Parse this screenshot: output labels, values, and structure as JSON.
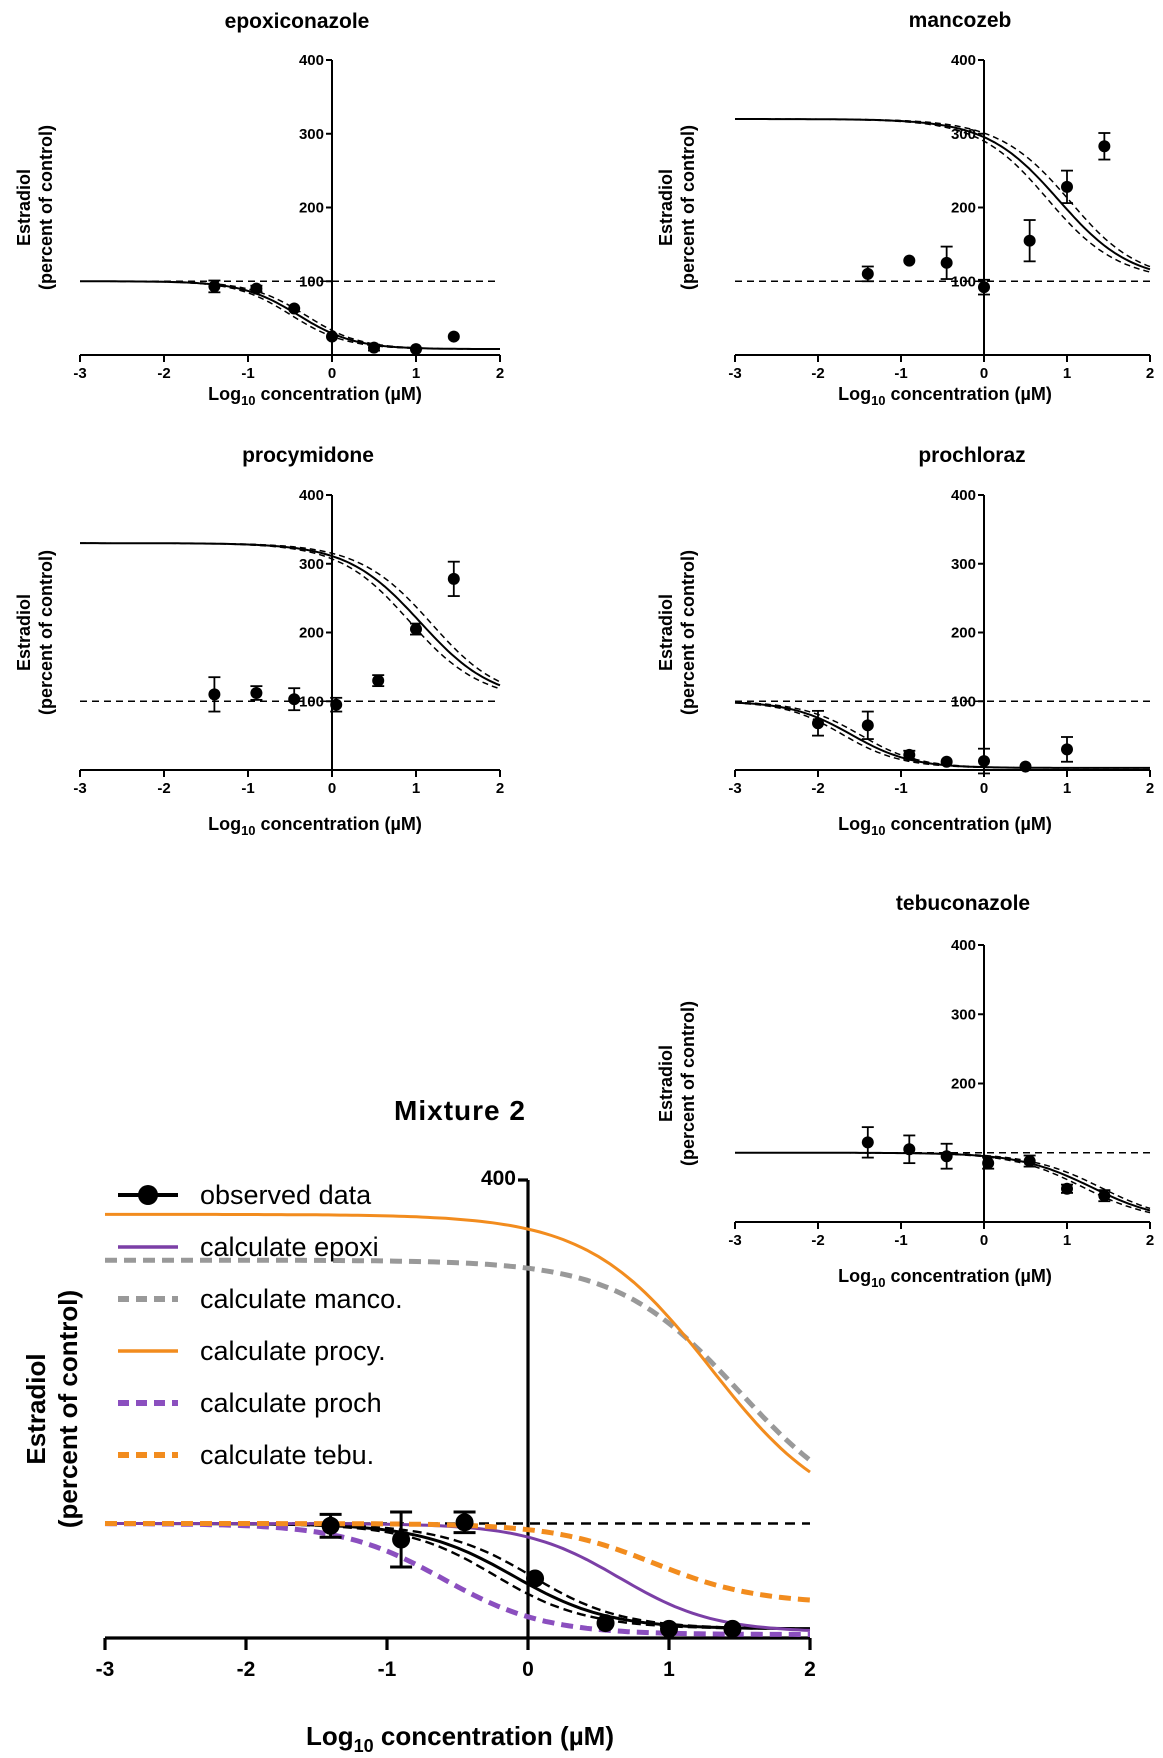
{
  "chart_data": [
    {
      "id": "epoxiconazole",
      "type": "scatter",
      "title": "epoxiconazole",
      "xlabel_main": "Log",
      "xlabel_sub": "10",
      "xlabel_rest": " concentration (µM)",
      "ylabel_line1": "Estradiol",
      "ylabel_line2": "(percent of control)",
      "xlim": [
        -3,
        2
      ],
      "ylim": [
        0,
        400
      ],
      "xticks": [
        "-3",
        "-2",
        "-1",
        "0",
        "1",
        "2"
      ],
      "yticks": [
        "100",
        "200",
        "300",
        "400"
      ],
      "reference_y": 100,
      "fit": {
        "top": 100,
        "bottom": 8,
        "logEC": -0.4,
        "hill": 1.3,
        "band": 6
      },
      "points": [
        {
          "x": -1.4,
          "y": 93,
          "err": 8
        },
        {
          "x": -0.9,
          "y": 90,
          "err": 4
        },
        {
          "x": -0.45,
          "y": 63,
          "err": 0
        },
        {
          "x": 0.0,
          "y": 25,
          "err": 0
        },
        {
          "x": 0.5,
          "y": 10,
          "err": 4
        },
        {
          "x": 1.0,
          "y": 8,
          "err": 0
        },
        {
          "x": 1.45,
          "y": 25,
          "err": 0
        }
      ]
    },
    {
      "id": "mancozeb",
      "type": "scatter",
      "title": "mancozeb",
      "xlabel_main": "Log",
      "xlabel_sub": "10",
      "xlabel_rest": " concentration (µM)",
      "ylabel_line1": "Estradiol",
      "ylabel_line2": "(percent of control)",
      "xlim": [
        -3,
        2
      ],
      "ylim": [
        0,
        400
      ],
      "xticks": [
        "-3",
        "-2",
        "-1",
        "0",
        "1",
        "2"
      ],
      "yticks": [
        "100",
        "200",
        "300",
        "400"
      ],
      "reference_y": 100,
      "fit": {
        "top": 320,
        "bottom": 100,
        "logEC": 0.9,
        "hill": 1.0,
        "band": 16
      },
      "points": [
        {
          "x": -1.4,
          "y": 110,
          "err": 10
        },
        {
          "x": -0.9,
          "y": 128,
          "err": 0
        },
        {
          "x": -0.45,
          "y": 125,
          "err": 22
        },
        {
          "x": 0.0,
          "y": 92,
          "err": 10
        },
        {
          "x": 0.55,
          "y": 155,
          "err": 28
        },
        {
          "x": 1.0,
          "y": 228,
          "err": 22
        },
        {
          "x": 1.45,
          "y": 283,
          "err": 18
        }
      ]
    },
    {
      "id": "procymidone",
      "type": "scatter",
      "title": "procymidone",
      "xlabel_main": "Log",
      "xlabel_sub": "10",
      "xlabel_rest": " concentration (µM)",
      "ylabel_line1": "Estradiol",
      "ylabel_line2": "(percent of control)",
      "xlim": [
        -3,
        2
      ],
      "ylim": [
        0,
        400
      ],
      "xticks": [
        "-3",
        "-2",
        "-1",
        "0",
        "1",
        "2"
      ],
      "yticks": [
        "100",
        "200",
        "300",
        "400"
      ],
      "reference_y": 100,
      "fit": {
        "top": 330,
        "bottom": 100,
        "logEC": 1.05,
        "hill": 1.0,
        "band": 16
      },
      "points": [
        {
          "x": -1.4,
          "y": 110,
          "err": 25
        },
        {
          "x": -0.9,
          "y": 112,
          "err": 10
        },
        {
          "x": -0.45,
          "y": 103,
          "err": 16
        },
        {
          "x": 0.05,
          "y": 95,
          "err": 10
        },
        {
          "x": 0.55,
          "y": 130,
          "err": 8
        },
        {
          "x": 1.0,
          "y": 205,
          "err": 8
        },
        {
          "x": 1.45,
          "y": 278,
          "err": 25
        }
      ]
    },
    {
      "id": "prochloraz",
      "type": "scatter",
      "title": "prochloraz",
      "xlabel_main": "Log",
      "xlabel_sub": "10",
      "xlabel_rest": " concentration (µM)",
      "ylabel_line1": "Estradiol",
      "ylabel_line2": "(percent of control)",
      "xlim": [
        -3,
        2
      ],
      "ylim": [
        0,
        400
      ],
      "xticks": [
        "-3",
        "-2",
        "-1",
        "0",
        "1",
        "2"
      ],
      "yticks": [
        "100",
        "200",
        "300",
        "400"
      ],
      "reference_y": 100,
      "fit": {
        "top": 100,
        "bottom": 3,
        "logEC": -1.6,
        "hill": 1.2,
        "band": 7
      },
      "points": [
        {
          "x": -2.0,
          "y": 68,
          "err": 18
        },
        {
          "x": -1.4,
          "y": 65,
          "err": 20
        },
        {
          "x": -0.9,
          "y": 22,
          "err": 6
        },
        {
          "x": -0.45,
          "y": 12,
          "err": 0
        },
        {
          "x": 0.0,
          "y": 13,
          "err": 18
        },
        {
          "x": 0.5,
          "y": 5,
          "err": 0
        },
        {
          "x": 1.0,
          "y": 30,
          "err": 18
        }
      ]
    },
    {
      "id": "tebuconazole",
      "type": "scatter",
      "title": "tebuconazole",
      "xlabel_main": "Log",
      "xlabel_sub": "10",
      "xlabel_rest": " concentration (µM)",
      "ylabel_line1": "Estradiol",
      "ylabel_line2": "(percent of control)",
      "xlim": [
        -3,
        2
      ],
      "ylim": [
        0,
        400
      ],
      "xticks": [
        "-3",
        "-2",
        "-1",
        "0",
        "1",
        "2"
      ],
      "yticks": [
        "200",
        "300",
        "400"
      ],
      "reference_y": 100,
      "fit": {
        "top": 100,
        "bottom": 0,
        "logEC": 1.3,
        "hill": 1.0,
        "band": 6
      },
      "points": [
        {
          "x": -1.4,
          "y": 115,
          "err": 22
        },
        {
          "x": -0.9,
          "y": 105,
          "err": 20
        },
        {
          "x": -0.45,
          "y": 95,
          "err": 18
        },
        {
          "x": 0.05,
          "y": 85,
          "err": 8
        },
        {
          "x": 0.55,
          "y": 88,
          "err": 8
        },
        {
          "x": 1.0,
          "y": 48,
          "err": 6
        },
        {
          "x": 1.45,
          "y": 38,
          "err": 8
        }
      ]
    },
    {
      "id": "mixture2",
      "type": "line",
      "title": "Mixture 2",
      "xlabel_main": "Log",
      "xlabel_sub": "10",
      "xlabel_rest": " concentration (µM)",
      "ylabel_line1": "Estradiol",
      "ylabel_line2": "(percent of control)",
      "xlim": [
        -3,
        2
      ],
      "ylim": [
        0,
        400
      ],
      "xticks": [
        "-3",
        "-2",
        "-1",
        "0",
        "1",
        "2"
      ],
      "yticks": [
        "400"
      ],
      "reference_y": 100,
      "legend_position": "top-left",
      "fit": {
        "top": 100,
        "bottom": 8,
        "logEC": -0.1,
        "hill": 1.3,
        "band": 9
      },
      "observed": [
        {
          "x": -1.4,
          "y": 98,
          "err": 10
        },
        {
          "x": -0.9,
          "y": 86,
          "err": 24
        },
        {
          "x": -0.45,
          "y": 101,
          "err": 9
        },
        {
          "x": 0.05,
          "y": 52,
          "err": 0
        },
        {
          "x": 0.55,
          "y": 13,
          "err": 0
        },
        {
          "x": 1.0,
          "y": 8,
          "err": 0
        },
        {
          "x": 1.45,
          "y": 8,
          "err": 0
        }
      ],
      "series": [
        {
          "name": "observed data",
          "color": "#000000",
          "style": "solid-marker"
        },
        {
          "name": "calculate epoxi",
          "color": "#7b3fa6",
          "style": "solid",
          "top": 100,
          "bottom": 5,
          "logEC": 0.65,
          "hill": 1.3
        },
        {
          "name": "calculate manco.",
          "color": "#999999",
          "style": "dashed",
          "top": 330,
          "bottom": 100,
          "logEC": 1.5,
          "hill": 1.0
        },
        {
          "name": "calculate procy.",
          "color": "#f28c1e",
          "style": "solid",
          "top": 370,
          "bottom": 100,
          "logEC": 1.3,
          "hill": 1.0
        },
        {
          "name": "calculate proch",
          "color": "#8b4fbf",
          "style": "dashed",
          "top": 100,
          "bottom": 3,
          "logEC": -0.6,
          "hill": 1.2
        },
        {
          "name": "calculate tebu.",
          "color": "#f28c1e",
          "style": "dashed",
          "top": 100,
          "bottom": 30,
          "logEC": 0.9,
          "hill": 1.2
        }
      ]
    }
  ]
}
